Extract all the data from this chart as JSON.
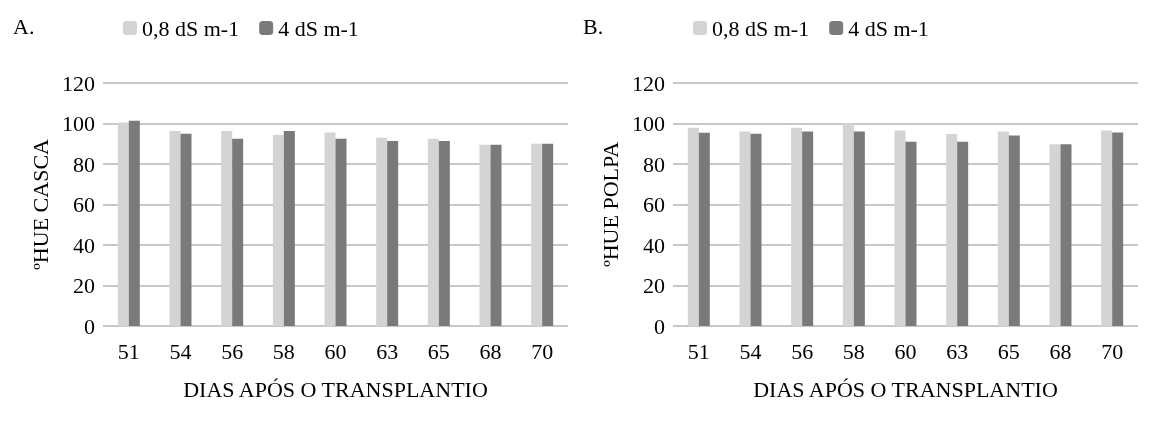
{
  "chart_data": [
    {
      "type": "bar",
      "title": "A.",
      "xlabel": "DIAS APÓS O TRANSPLANTIO",
      "ylabel": "ºHUE CASCA",
      "categories": [
        "51",
        "54",
        "56",
        "58",
        "60",
        "63",
        "65",
        "68",
        "70"
      ],
      "series": [
        {
          "name": "0,8 dS m-1",
          "color": "#d4d4d4",
          "values": [
            100.5,
            96.3,
            96.3,
            94.5,
            95.5,
            93,
            92.5,
            89.5,
            90
          ]
        },
        {
          "name": "4 dS m-1",
          "color": "#7a7a7a",
          "values": [
            101.3,
            95,
            92.5,
            96.3,
            92.5,
            91.3,
            91.3,
            89.5,
            90
          ]
        }
      ],
      "ylim": [
        0,
        120
      ],
      "yticks": [
        0,
        20,
        40,
        60,
        80,
        100,
        120
      ],
      "grid": "y",
      "legend": "top"
    },
    {
      "type": "bar",
      "title": "B.",
      "xlabel": "DIAS APÓS O TRANSPLANTIO",
      "ylabel": "ºHUE POLPA",
      "categories": [
        "51",
        "54",
        "56",
        "58",
        "60",
        "63",
        "65",
        "68",
        "70"
      ],
      "series": [
        {
          "name": "0,8 dS m-1",
          "color": "#d4d4d4",
          "values": [
            97.9,
            96,
            97.9,
            100,
            96.6,
            94.8,
            96,
            89.7,
            96.5
          ]
        },
        {
          "name": "4 dS m-1",
          "color": "#7a7a7a",
          "values": [
            95.4,
            94.9,
            96,
            96,
            91,
            91,
            94.1,
            89.7,
            95.5
          ]
        }
      ],
      "ylim": [
        0,
        120
      ],
      "yticks": [
        0,
        20,
        40,
        60,
        80,
        100,
        120
      ],
      "grid": "y",
      "legend": "top"
    }
  ]
}
